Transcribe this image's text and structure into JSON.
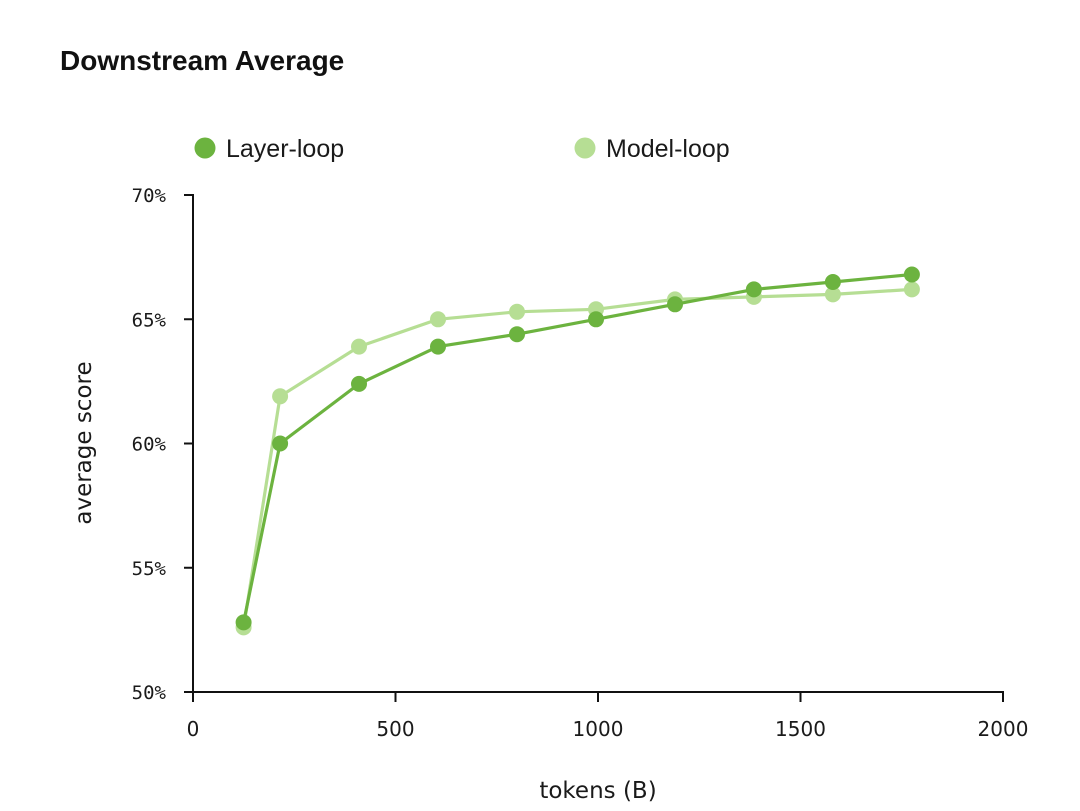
{
  "chart_data": {
    "type": "line",
    "title": "Downstream Average",
    "xlabel": "tokens (B)",
    "ylabel": "average score",
    "xlim": [
      0,
      2000
    ],
    "ylim": [
      50,
      70
    ],
    "xticks": [
      0,
      500,
      1000,
      1500,
      2000
    ],
    "xtick_labels": [
      "0",
      "500",
      "1000",
      "1500",
      "2000"
    ],
    "yticks": [
      50,
      55,
      60,
      65,
      70
    ],
    "ytick_labels": [
      "50%",
      "55%",
      "60%",
      "65%",
      "70%"
    ],
    "grid": false,
    "legend_position": "top",
    "series": [
      {
        "name": "Layer-loop",
        "color": "#6cb33f",
        "x": [
          125,
          215,
          410,
          605,
          800,
          995,
          1190,
          1385,
          1580,
          1775
        ],
        "y": [
          52.8,
          60.0,
          62.4,
          63.9,
          64.4,
          65.0,
          65.6,
          66.2,
          66.5,
          66.8
        ]
      },
      {
        "name": "Model-loop",
        "color": "#b6de94",
        "x": [
          125,
          215,
          410,
          605,
          800,
          995,
          1190,
          1385,
          1580,
          1775
        ],
        "y": [
          52.6,
          61.9,
          63.9,
          65.0,
          65.3,
          65.4,
          65.8,
          65.9,
          66.0,
          66.2
        ]
      }
    ]
  }
}
